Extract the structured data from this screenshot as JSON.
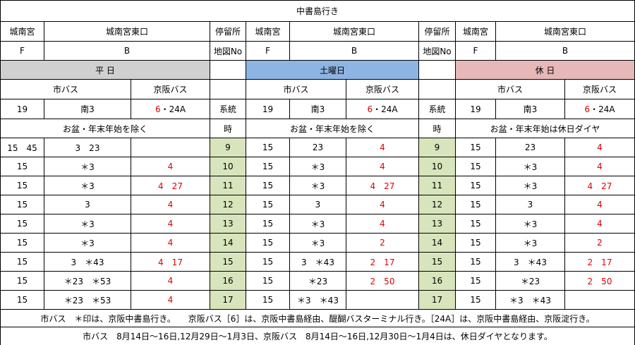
{
  "title": "中書島行き",
  "groups": [
    {
      "day": "平 日",
      "stop1": "城南宮",
      "stop2": "城南宮東口",
      "map1": "F",
      "map2": "B",
      "city_bus": "市バス",
      "keihan_bus": "京阪バス",
      "city_route1": "19",
      "city_route2": "南3",
      "keihan_route": [
        "6",
        "・24A"
      ],
      "note": "お盆・年末年始を除く",
      "rows": [
        [
          "15　45",
          "3　23",
          null
        ],
        [
          "15",
          "＊3",
          "4"
        ],
        [
          "15",
          "＊3",
          "4　27"
        ],
        [
          "15",
          "3",
          "4"
        ],
        [
          "15",
          "＊3",
          "4"
        ],
        [
          "15",
          "＊3",
          "4"
        ],
        [
          "15",
          "3　＊43",
          "4　17"
        ],
        [
          "15",
          "＊23　＊53",
          "4"
        ],
        [
          "15",
          "＊23　＊53",
          "4"
        ]
      ]
    },
    {
      "day": "土曜日",
      "stop1": "城南宮",
      "stop2": "城南宮東口",
      "map1": "F",
      "map2": "B",
      "city_bus": "市バス",
      "keihan_bus": "京阪バス",
      "city_route1": "19",
      "city_route2": "南3",
      "keihan_route": [
        "6",
        "・24A"
      ],
      "note": "お盆・年末年始を除く",
      "rows": [
        [
          "15",
          "23",
          "4"
        ],
        [
          "15",
          "＊3",
          "4"
        ],
        [
          "15",
          "＊3",
          "4　27"
        ],
        [
          "15",
          "3",
          "4"
        ],
        [
          "15",
          "＊3",
          "4"
        ],
        [
          "15",
          "＊3",
          "2"
        ],
        [
          "15",
          "3　＊43",
          "2　17"
        ],
        [
          "15",
          "＊23",
          "2　50"
        ],
        [
          "15",
          "＊3　＊43",
          null
        ]
      ]
    },
    {
      "day": "休 日",
      "stop1": "城南宮",
      "stop2": "城南宮東口",
      "map1": "F",
      "map2": "B",
      "city_bus": "市バス",
      "keihan_bus": "京阪バス",
      "city_route1": "19",
      "city_route2": "南3",
      "keihan_route": [
        "6",
        "・24A"
      ],
      "note": "お盆・年末年始は休日ダイヤ",
      "rows": [
        [
          "15",
          "23",
          "4"
        ],
        [
          "15",
          "＊3",
          "4"
        ],
        [
          "15",
          "＊3",
          "4　27"
        ],
        [
          "15",
          "3",
          "4"
        ],
        [
          "15",
          "＊3",
          "4"
        ],
        [
          "15",
          "＊3",
          "2"
        ],
        [
          "15",
          "3　＊43",
          "2　17"
        ],
        [
          "15",
          "＊23",
          "2　50"
        ],
        [
          "15",
          "＊3　＊43",
          null
        ]
      ]
    }
  ],
  "hour_columns": [
    {
      "stop": "停留所",
      "map": "地図No",
      "route": "系統",
      "hour": "時",
      "hours": [
        "9",
        "10",
        "11",
        "12",
        "13",
        "14",
        "15",
        "16",
        "17"
      ]
    },
    {
      "stop": "停留所",
      "map": "地図No",
      "route": "系統",
      "hour": "時",
      "hours": [
        "9",
        "10",
        "11",
        "12",
        "13",
        "14",
        "15",
        "16",
        "17"
      ]
    }
  ],
  "footer": [
    "市バス　＊印は、京阪中書島行き。　　京阪バス［6］は、京阪中書島経由、醍醐バスターミナル行き。［24A］は、京阪中書島経由、京阪淀行き。",
    "市バス　8月14日～16日,12月29日～1月3日、京阪バス　8月14日～16日,12月30日～1月4日は、休日ダイヤとなります。"
  ]
}
